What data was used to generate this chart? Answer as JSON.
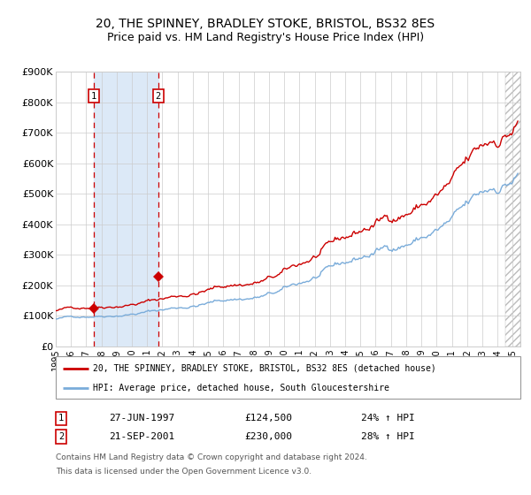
{
  "title1": "20, THE SPINNEY, BRADLEY STOKE, BRISTOL, BS32 8ES",
  "title2": "Price paid vs. HM Land Registry's House Price Index (HPI)",
  "ylim": [
    0,
    900000
  ],
  "yticks": [
    0,
    100000,
    200000,
    300000,
    400000,
    500000,
    600000,
    700000,
    800000,
    900000
  ],
  "ytick_labels": [
    "£0",
    "£100K",
    "£200K",
    "£300K",
    "£400K",
    "£500K",
    "£600K",
    "£700K",
    "£800K",
    "£900K"
  ],
  "xlim_start": 1995.0,
  "xlim_end": 2025.5,
  "xtick_years": [
    1995,
    1996,
    1997,
    1998,
    1999,
    2000,
    2001,
    2002,
    2003,
    2004,
    2005,
    2006,
    2007,
    2008,
    2009,
    2010,
    2011,
    2012,
    2013,
    2014,
    2015,
    2016,
    2017,
    2018,
    2019,
    2020,
    2021,
    2022,
    2023,
    2024,
    2025
  ],
  "purchase1_date": 1997.487,
  "purchase1_price": 124500,
  "purchase2_date": 2001.726,
  "purchase2_price": 230000,
  "highlight_color": "#dce9f7",
  "vline_color": "#cc0000",
  "line_red_color": "#cc0000",
  "line_blue_color": "#7aacda",
  "marker_color": "#cc0000",
  "legend1": "20, THE SPINNEY, BRADLEY STOKE, BRISTOL, BS32 8ES (detached house)",
  "legend2": "HPI: Average price, detached house, South Gloucestershire",
  "table_row1": [
    "1",
    "27-JUN-1997",
    "£124,500",
    "24% ↑ HPI"
  ],
  "table_row2": [
    "2",
    "21-SEP-2001",
    "£230,000",
    "28% ↑ HPI"
  ],
  "footnote1": "Contains HM Land Registry data © Crown copyright and database right 2024.",
  "footnote2": "This data is licensed under the Open Government Licence v3.0."
}
